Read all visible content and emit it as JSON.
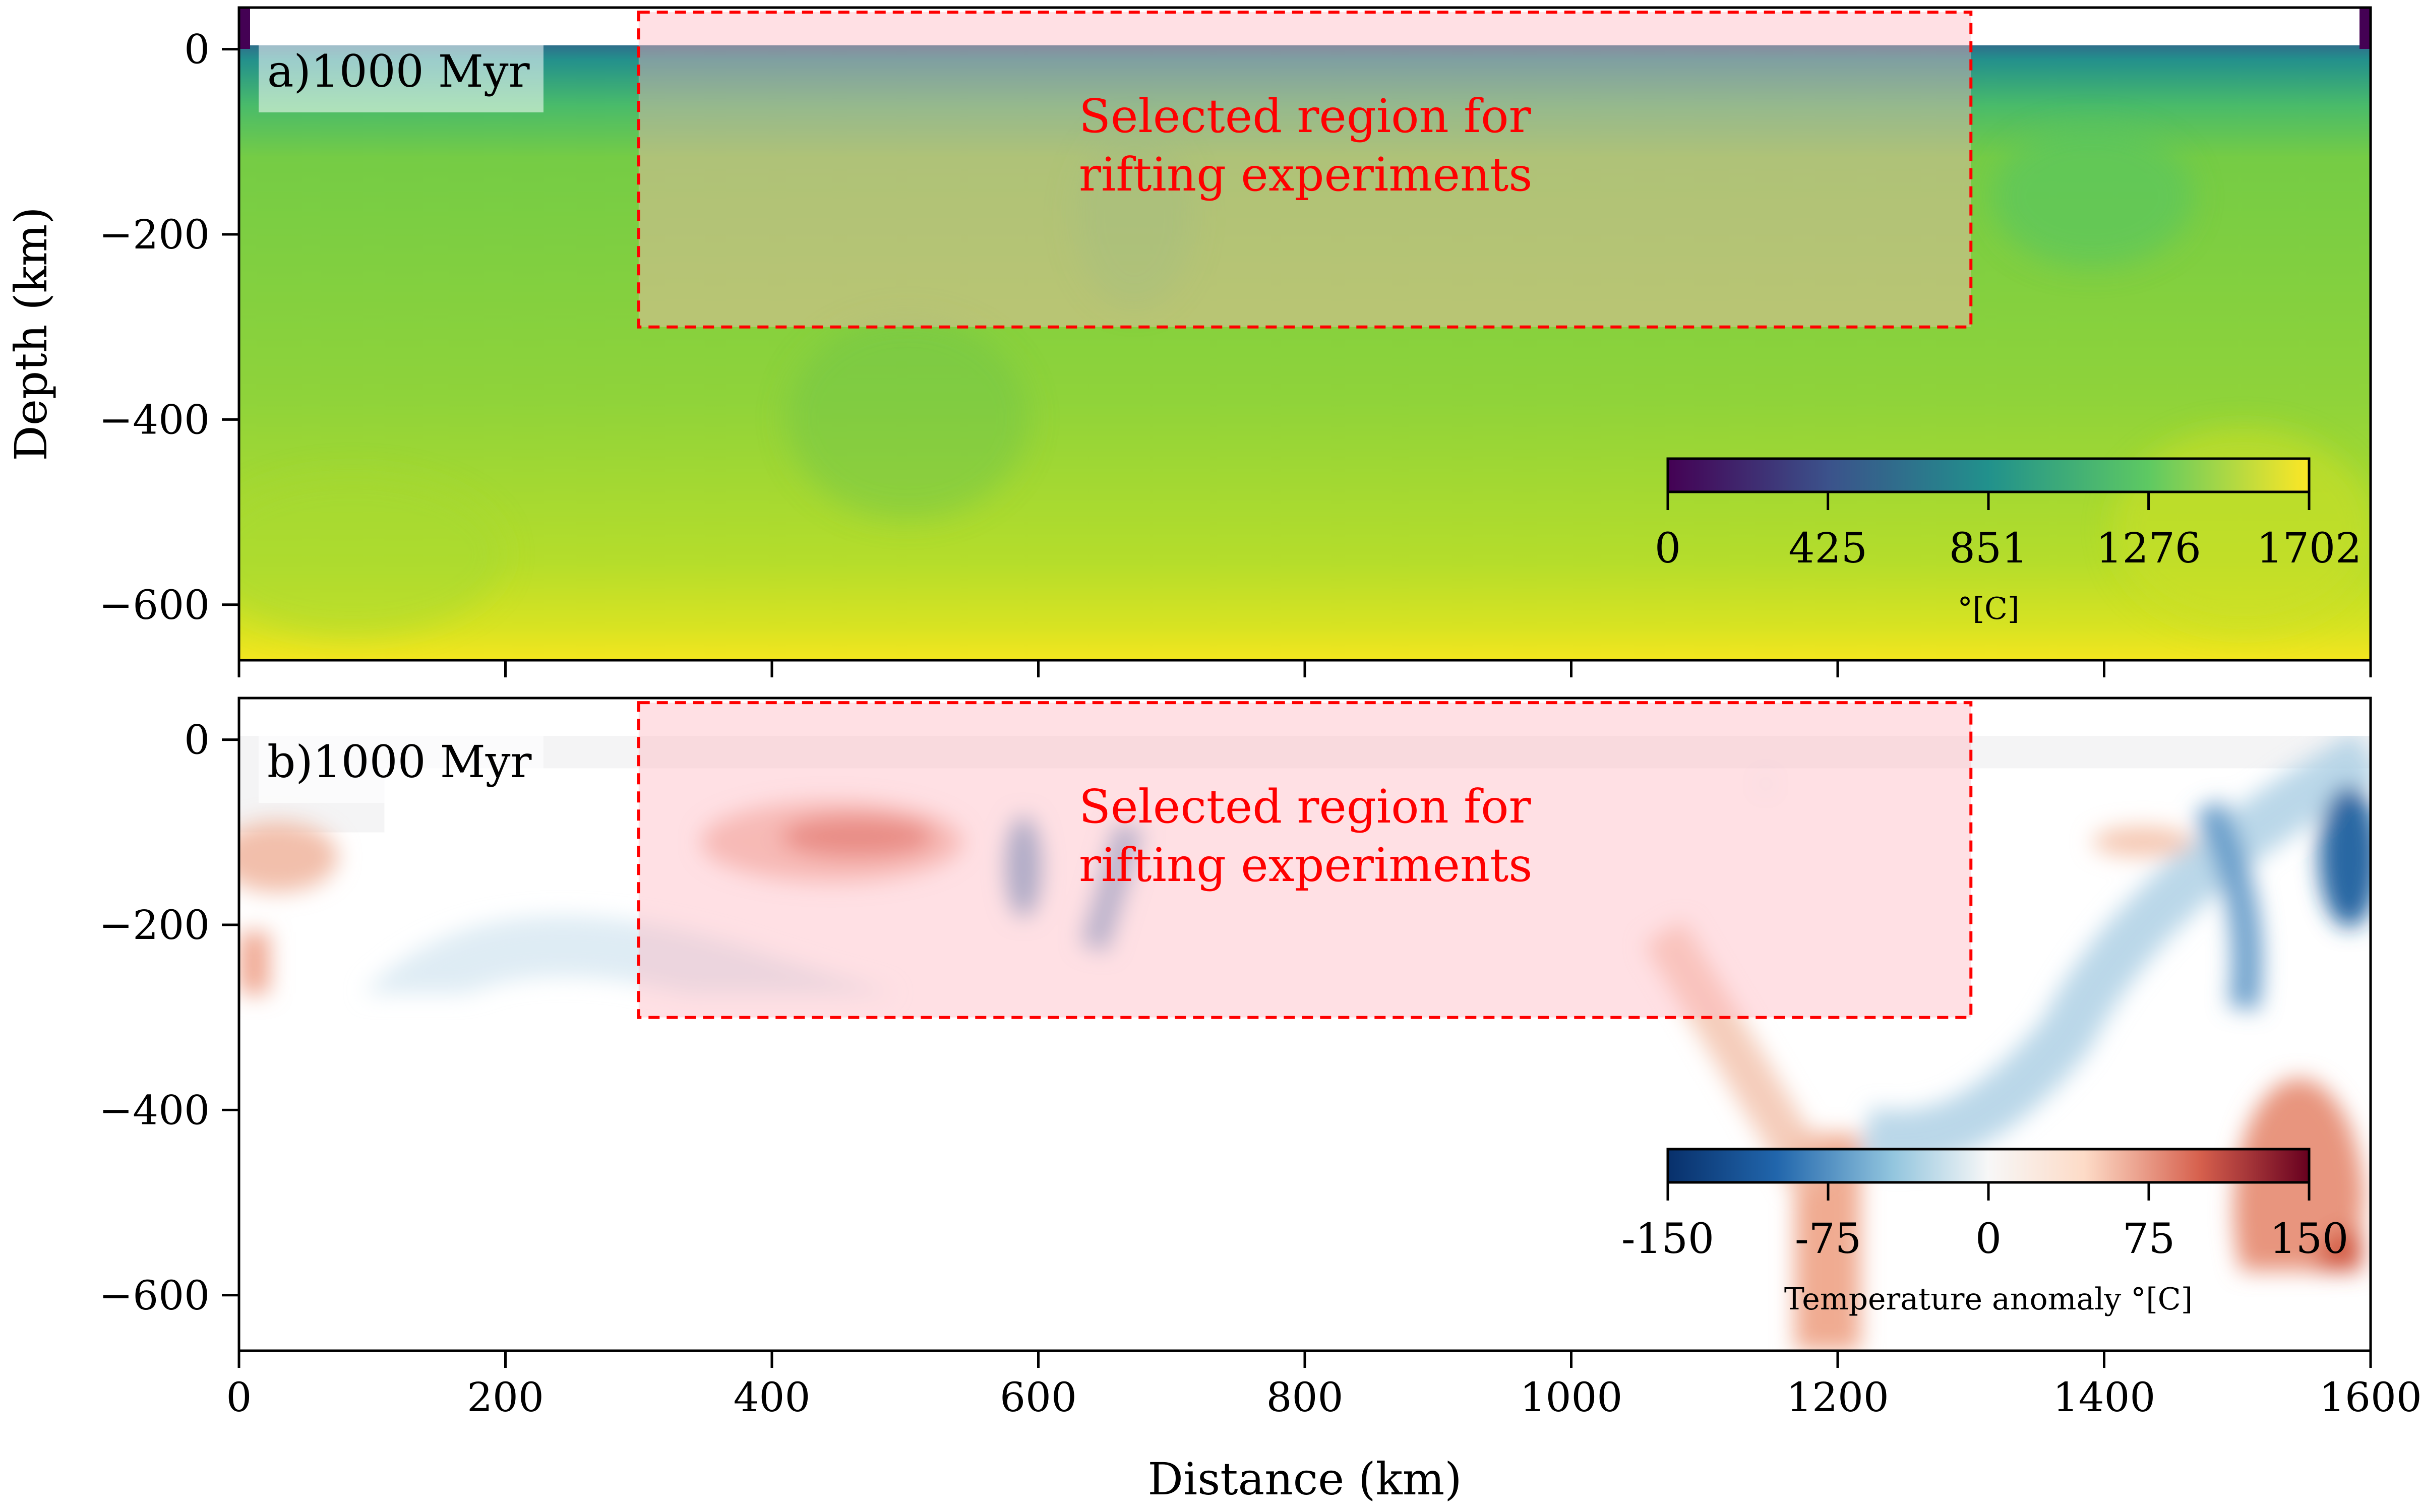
{
  "chart_data": [
    {
      "type": "heatmap",
      "panel": "a)",
      "time_label": "1000 Myr",
      "xlabel": "Distance (km)",
      "ylabel": "Depth (km)",
      "xlim": [
        0,
        1600
      ],
      "ylim": [
        -660,
        45
      ],
      "x_ticks": [
        0,
        200,
        400,
        600,
        800,
        1000,
        1200,
        1400,
        1600
      ],
      "y_ticks": [
        0,
        -200,
        -400,
        -600
      ],
      "y_tick_labels": [
        "0",
        "−200",
        "−400",
        "−600"
      ],
      "field": "temperature",
      "colormap": "viridis",
      "colorbar": {
        "ticks": [
          0,
          425,
          851,
          1276,
          1702
        ],
        "tick_labels": [
          "0",
          "425",
          "851",
          "1276",
          "1702"
        ],
        "label": "°[C]",
        "range": [
          0,
          1702
        ]
      },
      "selected_region": {
        "x": [
          300,
          1300
        ],
        "depth": [
          -300,
          40
        ],
        "label_line1": "Selected region for",
        "label_line2": "rifting experiments",
        "color": "#ff0000"
      }
    },
    {
      "type": "heatmap",
      "panel": "b)",
      "time_label": "1000 Myr",
      "xlabel": "Distance (km)",
      "ylabel": "Depth (km)",
      "xlim": [
        0,
        1600
      ],
      "ylim": [
        -660,
        45
      ],
      "x_ticks": [
        0,
        200,
        400,
        600,
        800,
        1000,
        1200,
        1400,
        1600
      ],
      "y_ticks": [
        0,
        -200,
        -400,
        -600
      ],
      "y_tick_labels": [
        "0",
        "−200",
        "−400",
        "−600"
      ],
      "field": "temperature anomaly",
      "colormap": "RdBu_r",
      "colorbar": {
        "ticks": [
          -150,
          -75,
          0,
          75,
          150
        ],
        "tick_labels": [
          "-150",
          "-75",
          "0",
          "75",
          "150"
        ],
        "label": "Temperature anomaly °[C]",
        "range": [
          -150,
          150
        ]
      },
      "selected_region": {
        "x": [
          300,
          1300
        ],
        "depth": [
          -300,
          40
        ],
        "label_line1": "Selected region for",
        "label_line2": "rifting experiments",
        "color": "#ff0000"
      }
    }
  ],
  "colors": {
    "viridis": [
      "#440154",
      "#3b528b",
      "#21918c",
      "#5ec962",
      "#fde725"
    ],
    "rdbu": [
      "#08306b",
      "#2166ac",
      "#92c5de",
      "#f7f7f7",
      "#fddbc7",
      "#d6604d",
      "#67001f"
    ],
    "region": "#ff0000"
  }
}
